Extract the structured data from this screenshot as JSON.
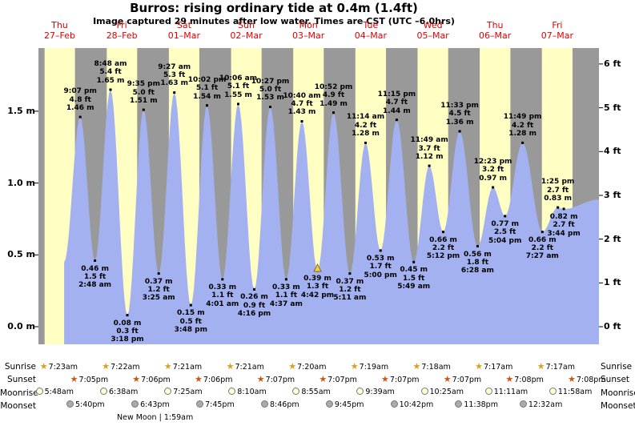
{
  "chart_data": {
    "type": "area",
    "title": "Burros: rising ordinary tide at 0.4m (1.4ft)",
    "subtitle": "Image captured 29 minutes after low water. Times are CST (UTC –6.0hrs)",
    "days": [
      {
        "dow": "Thu",
        "date": "27–Feb"
      },
      {
        "dow": "Fri",
        "date": "28–Feb"
      },
      {
        "dow": "Sat",
        "date": "01–Mar"
      },
      {
        "dow": "Sun",
        "date": "02–Mar"
      },
      {
        "dow": "Mon",
        "date": "03–Mar"
      },
      {
        "dow": "Tue",
        "date": "04–Mar"
      },
      {
        "dow": "Wed",
        "date": "05–Mar"
      },
      {
        "dow": "Thu",
        "date": "06–Mar"
      },
      {
        "dow": "Fri",
        "date": "07–Mar"
      }
    ],
    "axis_left": [
      {
        "m": 1.5,
        "label": "1.5 m"
      },
      {
        "m": 1.0,
        "label": "1.0 m"
      },
      {
        "m": 0.5,
        "label": "0.5 m"
      },
      {
        "m": 0.0,
        "label": "0.0 m"
      }
    ],
    "axis_right": [
      {
        "ft": 6,
        "label": "6 ft"
      },
      {
        "ft": 5,
        "label": "5 ft"
      },
      {
        "ft": 4,
        "label": "4 ft"
      },
      {
        "ft": 3,
        "label": "3 ft"
      },
      {
        "ft": 2,
        "label": "2 ft"
      },
      {
        "ft": 1,
        "label": "1 ft"
      },
      {
        "ft": 0,
        "label": "0 ft"
      }
    ],
    "tide_events": [
      {
        "kind": "high",
        "day": 0,
        "time": "9:07 pm",
        "ft": "4.8 ft",
        "height": "1.46 m",
        "height_m": 1.46
      },
      {
        "kind": "low",
        "day": 1,
        "time": "2:48 am",
        "ft": "1.5 ft",
        "height": "0.46 m",
        "height_m": 0.46
      },
      {
        "kind": "high",
        "day": 1,
        "time": "8:48 am",
        "ft": "5.4 ft",
        "height": "1.65 m",
        "height_m": 1.65
      },
      {
        "kind": "low",
        "day": 1,
        "time": "3:18 pm",
        "ft": "0.3 ft",
        "height": "0.08 m",
        "height_m": 0.08
      },
      {
        "kind": "high",
        "day": 1,
        "time": "9:35 pm",
        "ft": "5.0 ft",
        "height": "1.51 m",
        "height_m": 1.51
      },
      {
        "kind": "low",
        "day": 2,
        "time": "3:25 am",
        "ft": "1.2 ft",
        "height": "0.37 m",
        "height_m": 0.37
      },
      {
        "kind": "high",
        "day": 2,
        "time": "9:27 am",
        "ft": "5.3 ft",
        "height": "1.63 m",
        "height_m": 1.63
      },
      {
        "kind": "low",
        "day": 2,
        "time": "3:48 pm",
        "ft": "0.5 ft",
        "height": "0.15 m",
        "height_m": 0.15
      },
      {
        "kind": "high",
        "day": 2,
        "time": "10:02 pm",
        "ft": "5.1 ft",
        "height": "1.54 m",
        "height_m": 1.54
      },
      {
        "kind": "low",
        "day": 3,
        "time": "4:01 am",
        "ft": "1.1 ft",
        "height": "0.33 m",
        "height_m": 0.33
      },
      {
        "kind": "high",
        "day": 3,
        "time": "10:06 am",
        "ft": "5.1 ft",
        "height": "1.55 m",
        "height_m": 1.55
      },
      {
        "kind": "low",
        "day": 3,
        "time": "4:16 pm",
        "ft": "0.9 ft",
        "height": "0.26 m",
        "height_m": 0.26
      },
      {
        "kind": "high",
        "day": 3,
        "time": "10:27 pm",
        "ft": "5.0 ft",
        "height": "1.53 m",
        "height_m": 1.53
      },
      {
        "kind": "low",
        "day": 4,
        "time": "4:37 am",
        "ft": "1.1 ft",
        "height": "0.33 m",
        "height_m": 0.33
      },
      {
        "kind": "high",
        "day": 4,
        "time": "10:40 am",
        "ft": "4.7 ft",
        "height": "1.43 m",
        "height_m": 1.43
      },
      {
        "kind": "low",
        "day": 4,
        "time": "4:42 pm",
        "ft": "1.3 ft",
        "height": "0.39 m",
        "height_m": 0.39,
        "current": true
      },
      {
        "kind": "high",
        "day": 4,
        "time": "10:52 pm",
        "ft": "4.9 ft",
        "height": "1.49 m",
        "height_m": 1.49
      },
      {
        "kind": "low",
        "day": 5,
        "time": "5:11 am",
        "ft": "1.2 ft",
        "height": "0.37 m",
        "height_m": 0.37
      },
      {
        "kind": "high",
        "day": 5,
        "time": "11:14 am",
        "ft": "4.2 ft",
        "height": "1.28 m",
        "height_m": 1.28
      },
      {
        "kind": "low",
        "day": 5,
        "time": "5:00 pm",
        "ft": "1.7 ft",
        "height": "0.53 m",
        "height_m": 0.53
      },
      {
        "kind": "high",
        "day": 5,
        "time": "11:15 pm",
        "ft": "4.7 ft",
        "height": "1.44 m",
        "height_m": 1.44
      },
      {
        "kind": "low",
        "day": 6,
        "time": "5:49 am",
        "ft": "1.5 ft",
        "height": "0.45 m",
        "height_m": 0.45
      },
      {
        "kind": "high",
        "day": 6,
        "time": "11:49 am",
        "ft": "3.7 ft",
        "height": "1.12 m",
        "height_m": 1.12
      },
      {
        "kind": "low",
        "day": 6,
        "time": "5:12 pm",
        "ft": "2.2 ft",
        "height": "0.66 m",
        "height_m": 0.66
      },
      {
        "kind": "high",
        "day": 6,
        "time": "11:33 pm",
        "ft": "4.5 ft",
        "height": "1.36 m",
        "height_m": 1.36
      },
      {
        "kind": "low",
        "day": 7,
        "time": "6:28 am",
        "ft": "1.8 ft",
        "height": "0.56 m",
        "height_m": 0.56
      },
      {
        "kind": "high",
        "day": 7,
        "time": "12:23 pm",
        "ft": "3.2 ft",
        "height": "0.97 m",
        "height_m": 0.97
      },
      {
        "kind": "low",
        "day": 7,
        "time": "5:04 pm",
        "ft": "2.5 ft",
        "height": "0.77 m",
        "height_m": 0.77
      },
      {
        "kind": "high",
        "day": 7,
        "time": "11:49 pm",
        "ft": "4.2 ft",
        "height": "1.28 m",
        "height_m": 1.28
      },
      {
        "kind": "low",
        "day": 8,
        "time": "7:27 am",
        "ft": "2.2 ft",
        "height": "0.66 m",
        "height_m": 0.66
      },
      {
        "kind": "high",
        "day": 8,
        "time": "1:25 pm",
        "ft": "2.7 ft",
        "height": "0.83 m",
        "height_m": 0.83
      },
      {
        "kind": "low",
        "day": 8,
        "time": "3:44 pm",
        "ft": "2.7 ft",
        "height": "0.82 m",
        "height_m": 0.82
      }
    ],
    "colors": {
      "day_band": "#ffffc4",
      "night_band": "#999999",
      "tide_fill": "#a4b1f0",
      "curve_dot": "#000000",
      "day_label": "#e00000",
      "marker_fill": "#f5d23d",
      "marker_stroke": "#6b5500"
    }
  },
  "astro": {
    "rows": [
      {
        "name": "sunrise",
        "label": "Sunrise",
        "icon": "star",
        "color": "#d9a01f",
        "entries": [
          {
            "day": 0,
            "time": "7:23am"
          },
          {
            "day": 1,
            "time": "7:22am"
          },
          {
            "day": 2,
            "time": "7:21am"
          },
          {
            "day": 3,
            "time": "7:21am"
          },
          {
            "day": 4,
            "time": "7:20am"
          },
          {
            "day": 5,
            "time": "7:19am"
          },
          {
            "day": 6,
            "time": "7:18am"
          },
          {
            "day": 7,
            "time": "7:17am"
          },
          {
            "day": 8,
            "time": "7:17am"
          }
        ]
      },
      {
        "name": "sunset",
        "label": "Sunset",
        "icon": "star",
        "color": "#cc5512",
        "entries": [
          {
            "day": 0,
            "time": "7:05pm"
          },
          {
            "day": 1,
            "time": "7:06pm"
          },
          {
            "day": 2,
            "time": "7:06pm"
          },
          {
            "day": 3,
            "time": "7:07pm"
          },
          {
            "day": 4,
            "time": "7:07pm"
          },
          {
            "day": 5,
            "time": "7:07pm"
          },
          {
            "day": 6,
            "time": "7:07pm"
          },
          {
            "day": 7,
            "time": "7:08pm"
          },
          {
            "day": 8,
            "time": "7:08pm"
          }
        ]
      },
      {
        "name": "moonrise",
        "label": "Moonrise",
        "icon": "circle",
        "color": "#ffffd2",
        "entries": [
          {
            "day": 0,
            "time": "5:48am"
          },
          {
            "day": 1,
            "time": "6:38am"
          },
          {
            "day": 2,
            "time": "7:25am"
          },
          {
            "day": 3,
            "time": "8:10am"
          },
          {
            "day": 4,
            "time": "8:55am"
          },
          {
            "day": 5,
            "time": "9:39am"
          },
          {
            "day": 6,
            "time": "10:25am"
          },
          {
            "day": 7,
            "time": "11:11am"
          },
          {
            "day": 8,
            "time": "11:58am"
          }
        ]
      },
      {
        "name": "moonset",
        "label": "Moonset",
        "icon": "circle",
        "color": "#ababab",
        "entries": [
          {
            "day": 0,
            "time": "5:40pm"
          },
          {
            "day": 1,
            "time": "6:43pm"
          },
          {
            "day": 2,
            "time": "7:45pm"
          },
          {
            "day": 3,
            "time": "8:46pm"
          },
          {
            "day": 4,
            "time": "9:45pm"
          },
          {
            "day": 5,
            "time": "10:42pm"
          },
          {
            "day": 6,
            "time": "11:38pm"
          },
          {
            "day": 8,
            "time": "12:32am"
          }
        ]
      }
    ],
    "moon_phase": "New Moon | 1:59am"
  }
}
